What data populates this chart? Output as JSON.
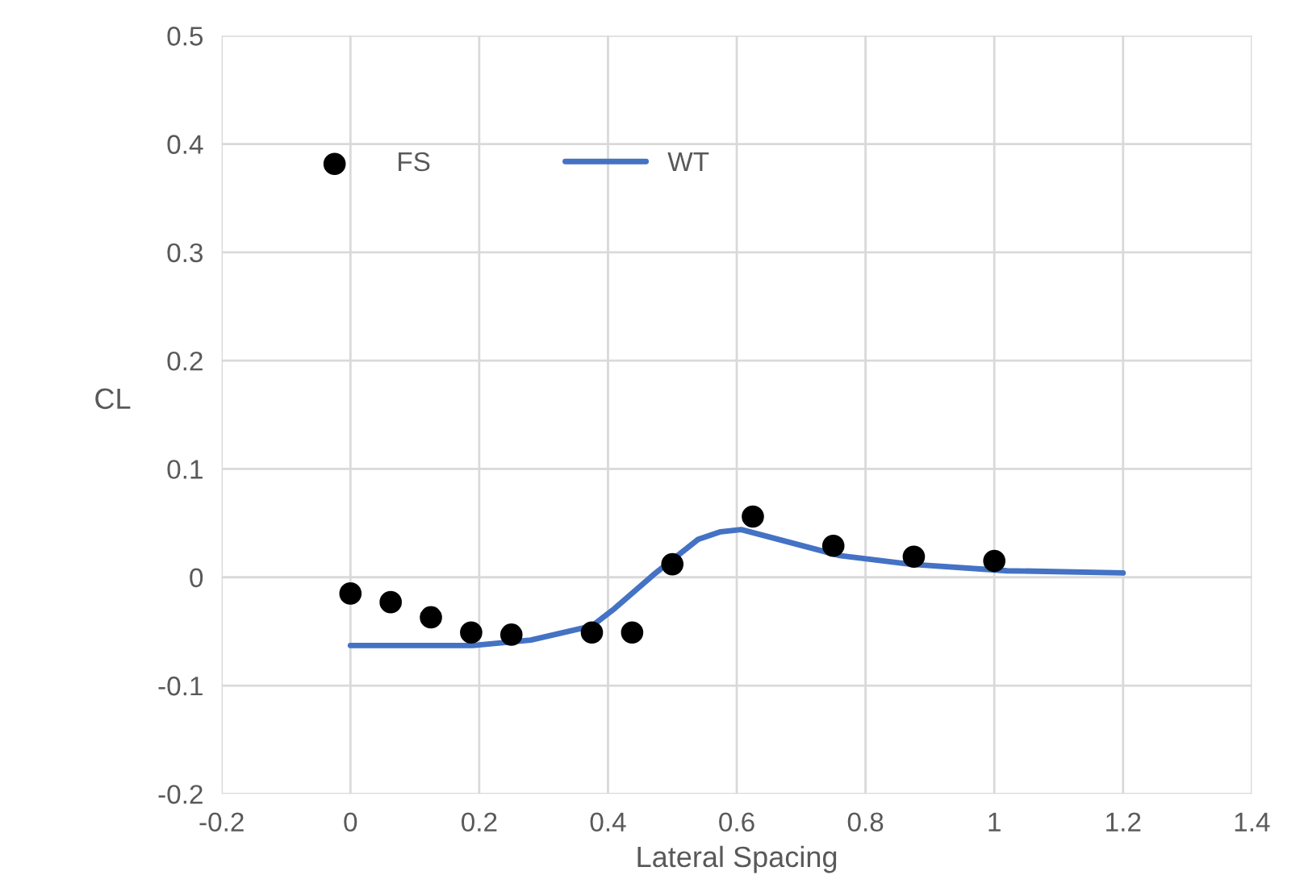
{
  "chart_data": {
    "type": "scatter",
    "xlabel": "Lateral Spacing",
    "ylabel": "CL",
    "xlim": [
      -0.2,
      1.4
    ],
    "xticks": [
      -0.2,
      0,
      0.2,
      0.4,
      0.6,
      0.8,
      1,
      1.2,
      1.4
    ],
    "ylim": [
      -0.2,
      0.5
    ],
    "yticks": [
      -0.2,
      -0.1,
      0,
      0.1,
      0.2,
      0.3,
      0.4,
      0.5
    ],
    "grid": true,
    "legend": "top left",
    "series": [
      {
        "name": "FS",
        "marker": "circle",
        "color": "#000000",
        "x": [
          0,
          0.0625,
          0.125,
          0.1875,
          0.25,
          0.375,
          0.4375,
          0.5,
          0.625,
          0.75,
          0.875,
          1.0
        ],
        "values": [
          -0.015,
          -0.023,
          -0.037,
          -0.051,
          -0.053,
          -0.051,
          -0.051,
          0.012,
          0.056,
          0.029,
          0.019,
          0.015
        ]
      },
      {
        "name": "WT",
        "type": "line",
        "marker": "none",
        "color": "#4472c4",
        "x": [
          0,
          0.19,
          0.28,
          0.375,
          0.41,
          0.47,
          0.54,
          0.575,
          0.607,
          0.76,
          0.87,
          1.02,
          1.2
        ],
        "values": [
          -0.063,
          -0.063,
          -0.058,
          -0.045,
          -0.029,
          0.002,
          0.035,
          0.042,
          0.044,
          0.02,
          0.012,
          0.006,
          0.004
        ]
      }
    ]
  }
}
